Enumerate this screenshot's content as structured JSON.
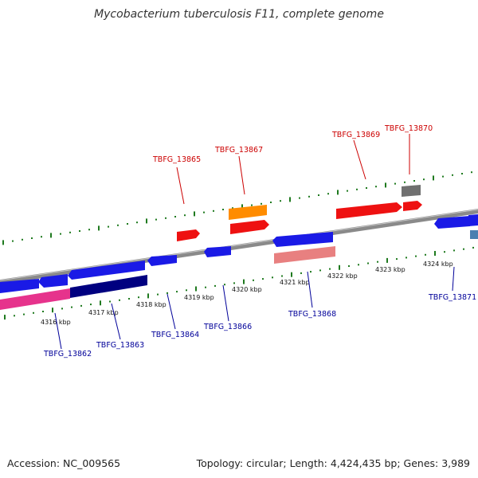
{
  "title": "Mycobacterium tuberculosis F11, complete genome",
  "footer": {
    "accession": "Accession: NC_009565",
    "topology": "Topology: circular; Length: 4,424,435 bp; Genes: 3,989"
  },
  "colors": {
    "backbone": "#8a8a8a",
    "ticks": "#1f7a1f",
    "forward_label": "#cc0000",
    "reverse_label": "#000099"
  },
  "kbp_labels": [
    "4316 kbp",
    "4317 kbp",
    "4318 kbp",
    "4319 kbp",
    "4320 kbp",
    "4321 kbp",
    "4322 kbp",
    "4323 kbp",
    "4324 kbp"
  ],
  "gene_labels_top": [
    "TBFG_13865",
    "TBFG_13867",
    "TBFG_13869",
    "TBFG_13870"
  ],
  "gene_labels_bottom": [
    "TBFG_13862",
    "TBFG_13863",
    "TBFG_13864",
    "TBFG_13866",
    "TBFG_13868",
    "TBFG_13871"
  ]
}
